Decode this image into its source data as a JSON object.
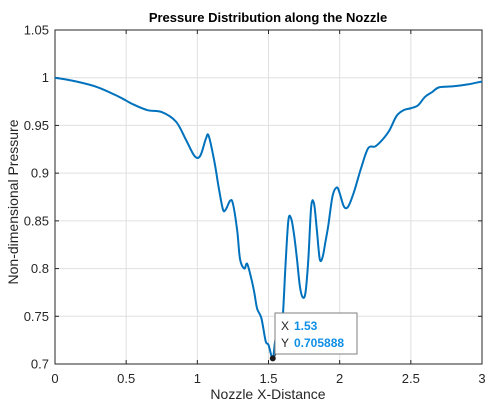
{
  "chart_data": {
    "type": "line",
    "title": "Pressure Distribution along the Nozzle",
    "xlabel": "Nozzle X-Distance",
    "ylabel": "Non-dimensional Pressure",
    "xlim": [
      0,
      3
    ],
    "ylim": [
      0.7,
      1.05
    ],
    "xticks": [
      "0",
      "0.5",
      "1",
      "1.5",
      "2",
      "2.5",
      "3"
    ],
    "yticks": [
      "0.7",
      "0.75",
      "0.8",
      "0.85",
      "0.9",
      "0.95",
      "1",
      "1.05"
    ],
    "grid": true,
    "line_color": "#0072bd",
    "series": [
      {
        "x": [
          0,
          0.15,
          0.3,
          0.45,
          0.55,
          0.65,
          0.75,
          0.85,
          0.92,
          0.98,
          1.02,
          1.06,
          1.08,
          1.12,
          1.15,
          1.18,
          1.2,
          1.23,
          1.25,
          1.28,
          1.3,
          1.33,
          1.35,
          1.38,
          1.4,
          1.42,
          1.45,
          1.48,
          1.5,
          1.53,
          1.55,
          1.58,
          1.6,
          1.62,
          1.64,
          1.66,
          1.68,
          1.7,
          1.72,
          1.74,
          1.76,
          1.78,
          1.8,
          1.82,
          1.84,
          1.86,
          1.88,
          1.9,
          1.92,
          1.95,
          1.98,
          2.0,
          2.03,
          2.06,
          2.1,
          2.15,
          2.2,
          2.25,
          2.3,
          2.35,
          2.4,
          2.45,
          2.5,
          2.55,
          2.6,
          2.65,
          2.7,
          2.8,
          2.9,
          3.0
        ],
        "y": [
          1.0,
          0.996,
          0.99,
          0.98,
          0.972,
          0.966,
          0.964,
          0.954,
          0.935,
          0.918,
          0.918,
          0.936,
          0.939,
          0.912,
          0.885,
          0.862,
          0.862,
          0.871,
          0.868,
          0.84,
          0.81,
          0.8,
          0.805,
          0.789,
          0.775,
          0.758,
          0.748,
          0.724,
          0.72,
          0.706,
          0.726,
          0.718,
          0.748,
          0.805,
          0.851,
          0.852,
          0.835,
          0.81,
          0.782,
          0.77,
          0.775,
          0.81,
          0.865,
          0.868,
          0.84,
          0.81,
          0.812,
          0.828,
          0.845,
          0.876,
          0.885,
          0.879,
          0.865,
          0.865,
          0.88,
          0.905,
          0.926,
          0.928,
          0.935,
          0.945,
          0.96,
          0.966,
          0.968,
          0.971,
          0.98,
          0.985,
          0.99,
          0.991,
          0.993,
          0.996
        ]
      }
    ],
    "datatip": {
      "x": 1.53,
      "y": 0.705888,
      "x_key": "X",
      "y_key": "Y",
      "x_text": "1.53",
      "y_text": "0.705888"
    }
  }
}
